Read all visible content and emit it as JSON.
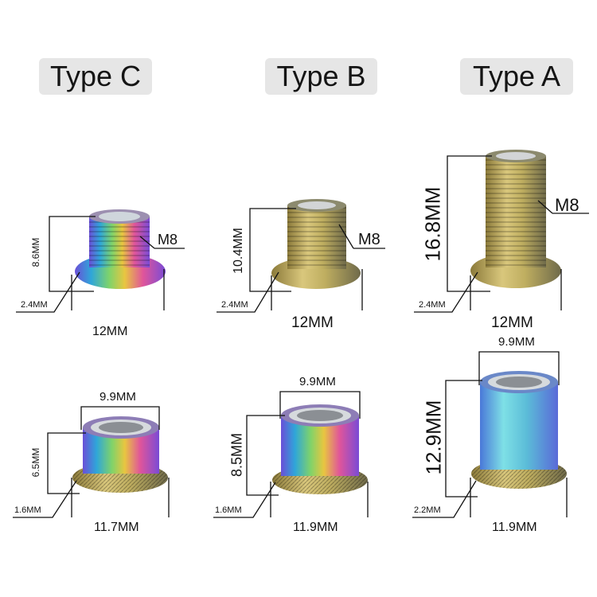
{
  "titles": {
    "type_c": "Type C",
    "type_b": "Type B",
    "type_a": "Type A"
  },
  "bolts": {
    "type_c": {
      "height": "8.6MM",
      "thread": "M8",
      "flange": "2.4MM",
      "diameter": "12MM"
    },
    "type_b": {
      "height": "10.4MM",
      "thread": "M8",
      "flange": "2.4MM",
      "diameter": "12MM"
    },
    "type_a": {
      "height": "16.8MM",
      "thread": "M8",
      "flange": "2.4MM",
      "diameter": "12MM"
    }
  },
  "nuts": {
    "type_c": {
      "top": "9.9MM",
      "height": "6.5MM",
      "flange": "1.6MM",
      "diameter": "11.7MM"
    },
    "type_b": {
      "top": "9.9MM",
      "height": "8.5MM",
      "flange": "1.6MM",
      "diameter": "11.9MM"
    },
    "type_a": {
      "top": "9.9MM",
      "height": "12.9MM",
      "flange": "2.2MM",
      "diameter": "11.9MM"
    }
  }
}
